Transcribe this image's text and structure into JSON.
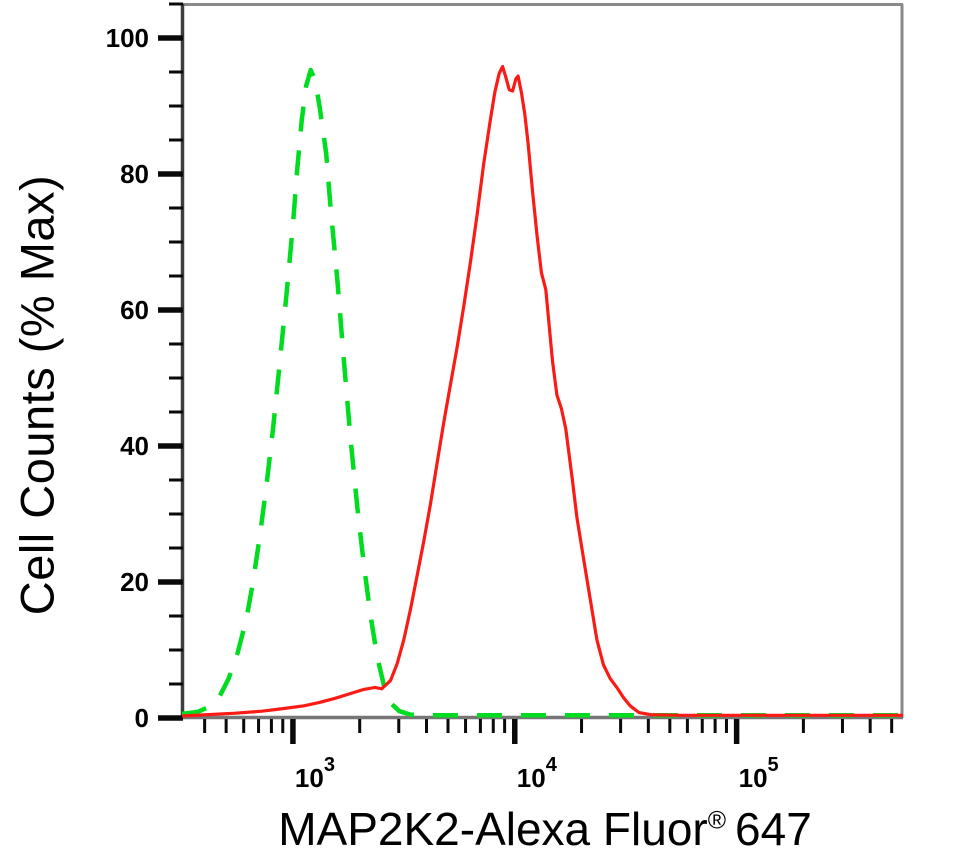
{
  "figure": {
    "background": "#ffffff",
    "border_color_dark": "#3e3e3e",
    "border_color_light": "#8a8a8a",
    "tick_color": "#0a0a0a",
    "text_color": "#000000"
  },
  "chart_data": {
    "type": "line",
    "subtype": "flow-cytometry-histogram",
    "title": "",
    "xlabel": "MAP2K2-Alexa Fluor® 647",
    "xlabel_parts": {
      "main": "MAP2K2-Alexa Fluor",
      "registered": "®",
      "suffix": "647"
    },
    "ylabel": "Cell Counts (% Max)",
    "x_scale": "log10",
    "x_domain_log10": [
      2.5,
      5.75
    ],
    "y_domain": [
      0,
      105
    ],
    "grid": "off",
    "legend": "none",
    "x_axis": {
      "major_ticks": [
        {
          "value": 1000,
          "label_base": "10",
          "label_exp": "3"
        },
        {
          "value": 10000,
          "label_base": "10",
          "label_exp": "4"
        },
        {
          "value": 100000,
          "label_base": "10",
          "label_exp": "5"
        }
      ],
      "minor_ticks": [
        400,
        500,
        600,
        700,
        800,
        900,
        2000,
        3000,
        4000,
        5000,
        6000,
        7000,
        8000,
        9000,
        20000,
        30000,
        40000,
        50000,
        60000,
        70000,
        80000,
        90000,
        200000,
        300000,
        400000,
        500000
      ]
    },
    "y_axis": {
      "major_ticks": [
        0,
        20,
        40,
        60,
        80,
        100
      ],
      "minor_step": 5,
      "minor_max": 105
    },
    "series": [
      {
        "name": "green-dashed-control",
        "color": "#00DC20",
        "style": "dashed",
        "line_width": 4.5,
        "points_log10x_pct": [
          [
            2.5,
            0.6
          ],
          [
            2.57,
            0.9
          ],
          [
            2.62,
            1.6
          ],
          [
            2.67,
            3.2
          ],
          [
            2.71,
            5.8
          ],
          [
            2.75,
            9.5
          ],
          [
            2.79,
            14.5
          ],
          [
            2.82,
            20.0
          ],
          [
            2.85,
            26.5
          ],
          [
            2.88,
            34.0
          ],
          [
            2.91,
            42.5
          ],
          [
            2.94,
            52.0
          ],
          [
            2.97,
            62.0
          ],
          [
            3.0,
            72.5
          ],
          [
            3.02,
            81.0
          ],
          [
            3.04,
            88.0
          ],
          [
            3.06,
            93.0
          ],
          [
            3.08,
            95.3
          ],
          [
            3.1,
            93.8
          ],
          [
            3.12,
            90.0
          ],
          [
            3.15,
            83.0
          ],
          [
            3.17,
            75.0
          ],
          [
            3.2,
            64.5
          ],
          [
            3.23,
            52.5
          ],
          [
            3.26,
            41.0
          ],
          [
            3.29,
            31.0
          ],
          [
            3.32,
            22.5
          ],
          [
            3.35,
            15.0
          ],
          [
            3.38,
            9.0
          ],
          [
            3.41,
            4.8
          ],
          [
            3.44,
            2.2
          ],
          [
            3.48,
            1.0
          ],
          [
            3.53,
            0.5
          ],
          [
            3.6,
            0.4
          ],
          [
            3.8,
            0.4
          ],
          [
            4.0,
            0.4
          ],
          [
            4.25,
            0.4
          ],
          [
            4.5,
            0.4
          ],
          [
            4.75,
            0.4
          ],
          [
            5.0,
            0.4
          ],
          [
            5.25,
            0.4
          ],
          [
            5.5,
            0.4
          ],
          [
            5.75,
            0.4
          ]
        ]
      },
      {
        "name": "red-solid-map2k2",
        "color": "#FA1B15",
        "style": "solid",
        "line_width": 3.2,
        "points_log10x_pct": [
          [
            2.5,
            0.3
          ],
          [
            2.62,
            0.5
          ],
          [
            2.74,
            0.7
          ],
          [
            2.86,
            1.0
          ],
          [
            2.96,
            1.4
          ],
          [
            3.05,
            1.8
          ],
          [
            3.12,
            2.3
          ],
          [
            3.19,
            2.9
          ],
          [
            3.26,
            3.6
          ],
          [
            3.32,
            4.2
          ],
          [
            3.37,
            4.5
          ],
          [
            3.4,
            4.3
          ],
          [
            3.44,
            5.5
          ],
          [
            3.47,
            8.0
          ],
          [
            3.5,
            11.5
          ],
          [
            3.53,
            16.0
          ],
          [
            3.56,
            21.0
          ],
          [
            3.59,
            26.0
          ],
          [
            3.62,
            31.5
          ],
          [
            3.65,
            37.5
          ],
          [
            3.68,
            43.5
          ],
          [
            3.71,
            49.0
          ],
          [
            3.74,
            54.5
          ],
          [
            3.77,
            60.5
          ],
          [
            3.8,
            67.0
          ],
          [
            3.83,
            74.0
          ],
          [
            3.86,
            81.5
          ],
          [
            3.89,
            88.0
          ],
          [
            3.91,
            92.0
          ],
          [
            3.93,
            94.8
          ],
          [
            3.945,
            95.8
          ],
          [
            3.96,
            94.2
          ],
          [
            3.975,
            92.4
          ],
          [
            3.99,
            92.2
          ],
          [
            4.005,
            94.0
          ],
          [
            4.015,
            94.4
          ],
          [
            4.03,
            92.0
          ],
          [
            4.045,
            88.8
          ],
          [
            4.06,
            84.5
          ],
          [
            4.08,
            77.5
          ],
          [
            4.1,
            71.0
          ],
          [
            4.12,
            65.5
          ],
          [
            4.14,
            63.0
          ],
          [
            4.17,
            52.5
          ],
          [
            4.19,
            47.5
          ],
          [
            4.21,
            45.5
          ],
          [
            4.23,
            42.5
          ],
          [
            4.26,
            35.0
          ],
          [
            4.28,
            29.5
          ],
          [
            4.31,
            23.5
          ],
          [
            4.34,
            17.5
          ],
          [
            4.37,
            11.5
          ],
          [
            4.4,
            7.8
          ],
          [
            4.43,
            5.8
          ],
          [
            4.46,
            4.5
          ],
          [
            4.49,
            3.0
          ],
          [
            4.52,
            1.8
          ],
          [
            4.56,
            0.8
          ],
          [
            4.62,
            0.45
          ],
          [
            4.75,
            0.4
          ],
          [
            5.0,
            0.4
          ],
          [
            5.3,
            0.4
          ],
          [
            5.6,
            0.4
          ],
          [
            5.75,
            0.4
          ]
        ]
      }
    ]
  }
}
